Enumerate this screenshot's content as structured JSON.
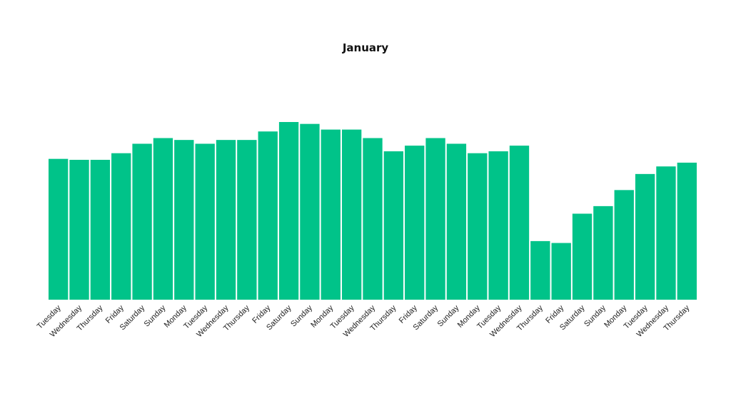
{
  "chart_data": {
    "type": "bar",
    "title": "January",
    "xlabel": "",
    "ylabel": "",
    "categories": [
      "Tuesday",
      "Wednesday",
      "Thursday",
      "Friday",
      "Saturday",
      "Sunday",
      "Monday",
      "Tuesday",
      "Wednesday",
      "Thursday",
      "Friday",
      "Saturday",
      "Sunday",
      "Monday",
      "Tuesday",
      "Wednesday",
      "Thursday",
      "Friday",
      "Saturday",
      "Sunday",
      "Monday",
      "Tuesday",
      "Wednesday",
      "Thursday",
      "Friday",
      "Saturday",
      "Sunday",
      "Monday",
      "Tuesday",
      "Wednesday",
      "Thursday"
    ],
    "values": [
      74.5,
      74,
      74,
      77.5,
      82.5,
      85.5,
      84.5,
      82.5,
      84.5,
      84.5,
      89,
      94,
      93,
      90,
      90,
      85.5,
      78.5,
      81.5,
      85.5,
      82.5,
      77.5,
      78.5,
      81.5,
      31,
      30,
      45.5,
      49.5,
      58,
      66.5,
      70.5,
      72.5
    ],
    "ylim": [
      0,
      100
    ],
    "grid": false,
    "legend": "none",
    "color": "#00c389"
  }
}
